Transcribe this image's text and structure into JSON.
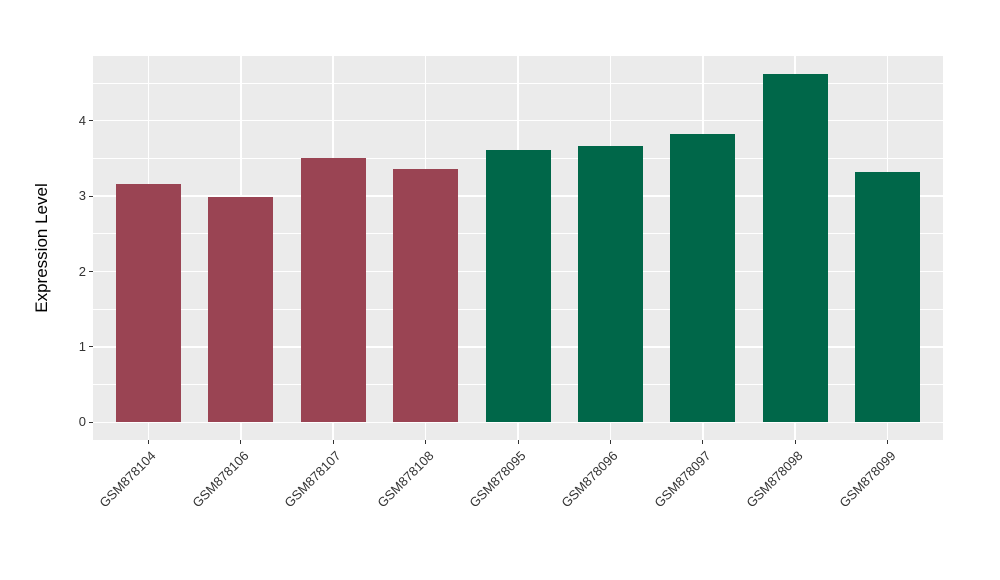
{
  "chart_data": {
    "type": "bar",
    "title": "",
    "xlabel": "",
    "ylabel": "Expression Level",
    "categories": [
      "GSM878104",
      "GSM878106",
      "GSM878107",
      "GSM878108",
      "GSM878095",
      "GSM878096",
      "GSM878097",
      "GSM878098",
      "GSM878099"
    ],
    "values": [
      3.16,
      2.99,
      3.51,
      3.36,
      3.61,
      3.67,
      3.82,
      4.62,
      3.32
    ],
    "groups": [
      "group1",
      "group1",
      "group1",
      "group1",
      "group2",
      "group2",
      "group2",
      "group2",
      "group2"
    ],
    "group_colors": {
      "group1": "#9A4453",
      "group2": "#006749"
    },
    "y_ticks": [
      0,
      1,
      2,
      3,
      4
    ],
    "y_tick_labels": [
      "0",
      "1",
      "2",
      "3",
      "4"
    ],
    "y_minor_ticks": [
      0.5,
      1.5,
      2.5,
      3.5,
      4.5
    ],
    "ylim": [
      0,
      4.86
    ],
    "grid": true,
    "legend_position": "none",
    "colors": {
      "panel_background": "#EBEBEB",
      "grid_major": "#FFFFFF",
      "grid_minor": "#FFFFFF",
      "tick_mark": "#333333",
      "tick_text": "#333333",
      "axis_title_text": "#000000",
      "page_background": "#FFFFFF"
    }
  }
}
